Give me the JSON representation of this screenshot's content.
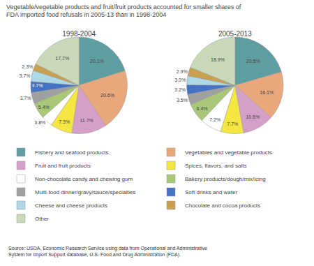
{
  "chart_data": {
    "type": "pie",
    "title": "Vegetable/vegetable products and fruit/fruit products accounted for smaller shares of\nFDA imported food refusals in 2005-13 than in 1998-2004",
    "annotations": [
      "Source: USDA, Economic Research Service using data from Operational and Administrative\nSystem for Import Support database, U.S. Food and Drug Administration (FDA)."
    ],
    "categories": [
      "Fishery and seafood products",
      "Vegetables and vegetable products",
      "Fruit and fruit products",
      "Spices, flavors, and salts",
      "Non-chocolate candy and chewing gum",
      "Bakery products/dough/mix/icing",
      "Multi-food dinner/gravy/sauce/specialties",
      "Soft drinks and water",
      "Cheese and cheese products",
      "Chocolate and cocoa products",
      "Other"
    ],
    "colors": [
      "#5f9ea0",
      "#e8a87c",
      "#d4a0c8",
      "#f5e642",
      "#ffffff",
      "#a8c878",
      "#a0a0a0",
      "#4472c4",
      "#add8e6",
      "#c8a050",
      "#c8d8b8"
    ],
    "series": [
      {
        "name": "1998-2004",
        "values": [
          20.1,
          20.6,
          11.7,
          7.3,
          3.8,
          5.4,
          3.7,
          3.7,
          3.7,
          2.3,
          17.7
        ],
        "value_labels": [
          "20.1%",
          "20.6%",
          "11.7%",
          "7.3%",
          "3.8%",
          "5.4%",
          "3.7%",
          "3.7%",
          "3.7%",
          "2.3%",
          "17.7%"
        ]
      },
      {
        "name": "2005-2013",
        "values": [
          20.5,
          16.1,
          10.5,
          7.7,
          7.2,
          6.4,
          3.5,
          3.2,
          3.0,
          2.9,
          18.9
        ],
        "value_labels": [
          "20.5%",
          "16.1%",
          "10.5%",
          "7.7%",
          "7.2%",
          "6.4%",
          "3.5%",
          "3.2%",
          "3.0%",
          "2.9%",
          "18.9%"
        ]
      }
    ],
    "data_labels": true,
    "legend": "bottom"
  }
}
